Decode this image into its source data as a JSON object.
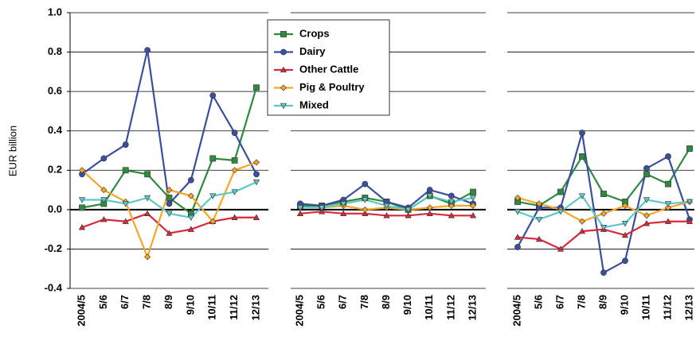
{
  "chart_data": {
    "type": "line",
    "y_label": "EUR billion",
    "ylim": [
      -0.4,
      1.0
    ],
    "yticks": [
      {
        "value": 1.0,
        "label": "1.0"
      },
      0.8,
      0.6,
      0.4,
      0.2,
      {
        "value": 0,
        "label": "0.0"
      },
      -0.2,
      -0.4
    ],
    "grid": true,
    "legend": "top",
    "series": [
      {
        "name": "Crops",
        "color": "#2e8b3e",
        "marker": "square"
      },
      {
        "name": "Dairy",
        "color": "#3a4fa0",
        "marker": "circle"
      },
      {
        "name": "Other Cattle",
        "color": "#d62a3a",
        "marker": "triangle"
      },
      {
        "name": "Pig & Poultry",
        "color": "#f5a623",
        "marker": "diamond"
      },
      {
        "name": "Mixed",
        "color": "#5ec8c8",
        "marker": "triangle-down"
      }
    ],
    "panels": [
      {
        "categories": [
          "2004/5",
          "5/6",
          "6/7",
          "7/8",
          "8/9",
          "9/10",
          "10/11",
          "11/12",
          "12/13"
        ],
        "values": [
          [
            0.01,
            0.03,
            0.2,
            0.18,
            0.06,
            -0.02,
            0.26,
            0.25,
            0.62
          ],
          [
            0.18,
            0.26,
            0.33,
            0.81,
            0.03,
            0.15,
            0.58,
            0.39,
            0.18
          ],
          [
            -0.09,
            -0.05,
            -0.06,
            -0.02,
            -0.12,
            -0.1,
            -0.06,
            -0.04,
            -0.04
          ],
          [
            0.2,
            0.1,
            0.04,
            -0.24,
            0.1,
            0.07,
            -0.06,
            0.2,
            0.24
          ],
          [
            0.05,
            0.05,
            0.03,
            0.06,
            -0.02,
            -0.04,
            0.07,
            0.09,
            0.14
          ]
        ]
      },
      {
        "categories": [
          "2004/5",
          "5/6",
          "6/7",
          "7/8",
          "8/9",
          "9/10",
          "10/11",
          "11/12",
          "12/13"
        ],
        "values": [
          [
            0.02,
            0.02,
            0.04,
            0.06,
            0.04,
            0.0,
            0.07,
            0.03,
            0.09
          ],
          [
            0.03,
            0.02,
            0.05,
            0.13,
            0.04,
            0.01,
            0.1,
            0.07,
            0.03
          ],
          [
            -0.02,
            -0.01,
            -0.02,
            -0.02,
            -0.03,
            -0.03,
            -0.02,
            -0.03,
            -0.03
          ],
          [
            0.01,
            0.01,
            0.02,
            0.0,
            0.01,
            0.0,
            0.01,
            0.02,
            0.02
          ],
          [
            0.01,
            0.01,
            0.03,
            0.05,
            0.02,
            0.0,
            0.07,
            0.04,
            0.06
          ]
        ]
      },
      {
        "categories": [
          "2004/5",
          "5/6",
          "6/7",
          "7/8",
          "8/9",
          "9/10",
          "10/11",
          "11/12",
          "12/13"
        ],
        "values": [
          [
            0.04,
            0.02,
            0.09,
            0.27,
            0.08,
            0.04,
            0.18,
            0.13,
            0.31
          ],
          [
            -0.19,
            0.01,
            0.01,
            0.39,
            -0.32,
            -0.26,
            0.21,
            0.27,
            -0.05
          ],
          [
            -0.14,
            -0.15,
            -0.2,
            -0.11,
            -0.1,
            -0.13,
            -0.07,
            -0.06,
            -0.06
          ],
          [
            0.06,
            0.03,
            0.0,
            -0.06,
            -0.02,
            0.02,
            -0.03,
            0.01,
            0.04
          ],
          [
            -0.01,
            -0.05,
            -0.01,
            0.07,
            -0.09,
            -0.07,
            0.05,
            0.03,
            0.04
          ]
        ]
      }
    ]
  }
}
